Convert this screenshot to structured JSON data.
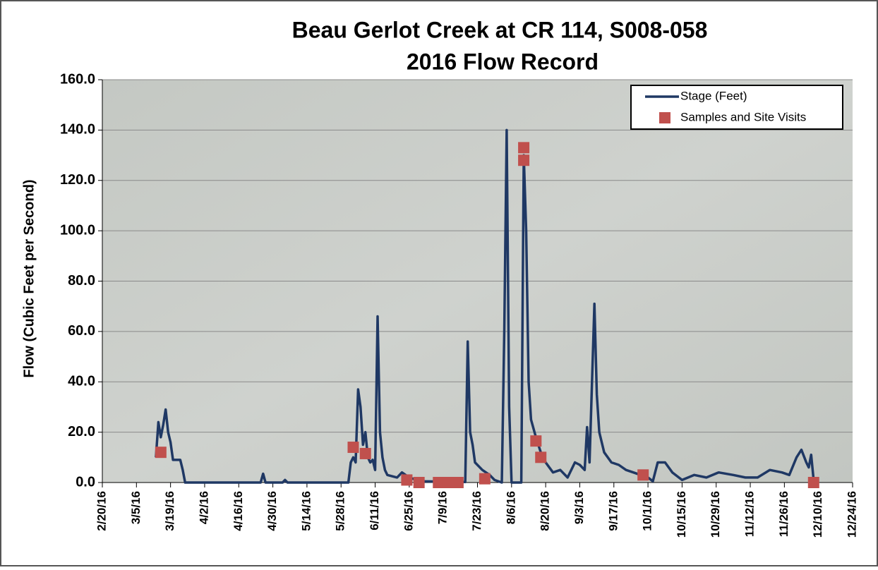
{
  "chart_data": {
    "type": "line",
    "title": "Beau Gerlot Creek at CR 114, S008-058",
    "subtitle": "2016 Flow Record",
    "y_label": "Flow (Cubic Feet per Second)",
    "ylim": [
      0,
      160
    ],
    "yticks": [
      {
        "value": 0,
        "label": "0.0"
      },
      {
        "value": 20,
        "label": "20.0"
      },
      {
        "value": 40,
        "label": "40.0"
      },
      {
        "value": 60,
        "label": "60.0"
      },
      {
        "value": 80,
        "label": "80.0"
      },
      {
        "value": 100,
        "label": "100.0"
      },
      {
        "value": 120,
        "label": "120.0"
      },
      {
        "value": 140,
        "label": "140.0"
      },
      {
        "value": 160,
        "label": "160.0"
      }
    ],
    "xlim": [
      "2016-02-20",
      "2016-12-24"
    ],
    "xticks": [
      {
        "value": "2016-02-20",
        "label": "2/20/16"
      },
      {
        "value": "2016-03-05",
        "label": "3/5/16"
      },
      {
        "value": "2016-03-19",
        "label": "3/19/16"
      },
      {
        "value": "2016-04-02",
        "label": "4/2/16"
      },
      {
        "value": "2016-04-16",
        "label": "4/16/16"
      },
      {
        "value": "2016-04-30",
        "label": "4/30/16"
      },
      {
        "value": "2016-05-14",
        "label": "5/14/16"
      },
      {
        "value": "2016-05-28",
        "label": "5/28/16"
      },
      {
        "value": "2016-06-11",
        "label": "6/11/16"
      },
      {
        "value": "2016-06-25",
        "label": "6/25/16"
      },
      {
        "value": "2016-07-09",
        "label": "7/9/16"
      },
      {
        "value": "2016-07-23",
        "label": "7/23/16"
      },
      {
        "value": "2016-08-06",
        "label": "8/6/16"
      },
      {
        "value": "2016-08-20",
        "label": "8/20/16"
      },
      {
        "value": "2016-09-03",
        "label": "9/3/16"
      },
      {
        "value": "2016-09-17",
        "label": "9/17/16"
      },
      {
        "value": "2016-10-01",
        "label": "10/1/16"
      },
      {
        "value": "2016-10-15",
        "label": "10/15/16"
      },
      {
        "value": "2016-10-29",
        "label": "10/29/16"
      },
      {
        "value": "2016-11-12",
        "label": "11/12/16"
      },
      {
        "value": "2016-11-26",
        "label": "11/26/16"
      },
      {
        "value": "2016-12-10",
        "label": "12/10/16"
      },
      {
        "value": "2016-12-24",
        "label": "12/24/16"
      }
    ],
    "grid": true,
    "legend": "top-right",
    "series": [
      {
        "name": "Stage (Feet)",
        "type": "line",
        "color": "#1f3864",
        "x": [
          "2016-03-13",
          "2016-03-14",
          "2016-03-15",
          "2016-03-16",
          "2016-03-17",
          "2016-03-18",
          "2016-03-19",
          "2016-03-20",
          "2016-03-23",
          "2016-03-24",
          "2016-03-25",
          "2016-04-25",
          "2016-04-26",
          "2016-04-27",
          "2016-05-04",
          "2016-05-05",
          "2016-05-06",
          "2016-05-31",
          "2016-06-01",
          "2016-06-02",
          "2016-06-03",
          "2016-06-04",
          "2016-06-05",
          "2016-06-06",
          "2016-06-07",
          "2016-06-08",
          "2016-06-09",
          "2016-06-10",
          "2016-06-11",
          "2016-06-12",
          "2016-06-13",
          "2016-06-14",
          "2016-06-15",
          "2016-06-16",
          "2016-06-20",
          "2016-06-22",
          "2016-06-25",
          "2016-06-28",
          "2016-07-01",
          "2016-07-15",
          "2016-07-18",
          "2016-07-19",
          "2016-07-20",
          "2016-07-21",
          "2016-07-22",
          "2016-07-25",
          "2016-07-28",
          "2016-07-30",
          "2016-08-02",
          "2016-08-03",
          "2016-08-04",
          "2016-08-05",
          "2016-08-06",
          "2016-08-10",
          "2016-08-11",
          "2016-08-12",
          "2016-08-13",
          "2016-08-14",
          "2016-08-16",
          "2016-08-18",
          "2016-08-20",
          "2016-08-23",
          "2016-08-26",
          "2016-08-29",
          "2016-09-01",
          "2016-09-03",
          "2016-09-05",
          "2016-09-06",
          "2016-09-07",
          "2016-09-09",
          "2016-09-10",
          "2016-09-11",
          "2016-09-13",
          "2016-09-16",
          "2016-09-19",
          "2016-09-22",
          "2016-09-25",
          "2016-09-28",
          "2016-10-01",
          "2016-10-03",
          "2016-10-05",
          "2016-10-08",
          "2016-10-11",
          "2016-10-15",
          "2016-10-20",
          "2016-10-25",
          "2016-10-30",
          "2016-11-05",
          "2016-11-10",
          "2016-11-15",
          "2016-11-20",
          "2016-11-25",
          "2016-11-28",
          "2016-12-01",
          "2016-12-03",
          "2016-12-05",
          "2016-12-06",
          "2016-12-07",
          "2016-12-08"
        ],
        "values": [
          10,
          24,
          18,
          23,
          29,
          20,
          16,
          9,
          9,
          5,
          0,
          0,
          3.5,
          0,
          0,
          1,
          0,
          0,
          8,
          10,
          8,
          37,
          30,
          15,
          20,
          10,
          8,
          9,
          5,
          66,
          20,
          10,
          5,
          3,
          2,
          4,
          2,
          1,
          0.5,
          0.2,
          0.2,
          56,
          20,
          15,
          8,
          5,
          3,
          1,
          0,
          60,
          140,
          30,
          0,
          0,
          130,
          100,
          40,
          25,
          18,
          12,
          8,
          4,
          5,
          2,
          8,
          7,
          5,
          22,
          8,
          71,
          35,
          20,
          12,
          8,
          7,
          5,
          4,
          3,
          2,
          0.5,
          8,
          8,
          4,
          1,
          3,
          2,
          4,
          3,
          2,
          2,
          5,
          4,
          3,
          10,
          13,
          8,
          6,
          11,
          1
        ]
      },
      {
        "name": "Samples and Site Visits",
        "type": "scatter",
        "color": "#c0504d",
        "x": [
          "2016-03-15",
          "2016-06-02",
          "2016-06-07",
          "2016-06-24",
          "2016-06-29",
          "2016-07-07",
          "2016-07-11",
          "2016-07-15",
          "2016-07-26",
          "2016-08-11",
          "2016-08-11",
          "2016-08-16",
          "2016-08-18",
          "2016-09-29",
          "2016-12-08"
        ],
        "values": [
          12,
          14,
          11.5,
          1,
          0,
          0,
          0,
          0,
          1.5,
          133,
          128,
          16.5,
          10,
          3,
          0
        ]
      }
    ]
  }
}
